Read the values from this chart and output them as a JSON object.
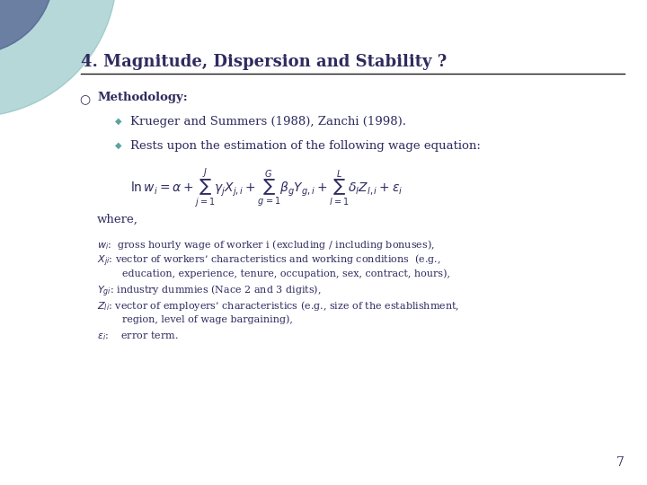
{
  "title": "4. Magnitude, Dispersion and Stability ?",
  "title_color": "#2E2B5F",
  "title_fontsize": 13,
  "bg_color": "#FFFFFF",
  "line_color": "#1a1a1a",
  "bullet_diamond_color": "#5BA3A0",
  "open_circle_color": "#2E2B5F",
  "body_color": "#2E2B5F",
  "body_fontsize": 9.5,
  "eq_fontsize": 9,
  "small_fontsize": 8,
  "page_number": "7",
  "teal_color": "#7BB8B8",
  "blue_circle_color": "#4A5A8A",
  "methodology_text": "Methodology:",
  "sub_bullet1": "Krueger and Summers (1988), Zanchi (1998).",
  "sub_bullet2": "Rests upon the estimation of the following wage equation:",
  "where_text": "where,",
  "desc1_var": "$w_i$",
  "desc1_text": ":  gross hourly wage of worker i (excluding / including bonuses),",
  "desc2_var": "$X_{ji}$",
  "desc2_text": ": vector of workers’ characteristics and working conditions  (e.g.,",
  "desc2_cont": "education, experience, tenure, occupation, sex, contract, hours),",
  "desc3_var": "$Y_{gi}$",
  "desc3_text": ": industry dummies (Nace 2 and 3 digits),",
  "desc4_var": "$Z_{li}$",
  "desc4_text": ": vector of employers’ characteristics (e.g., size of the establishment,",
  "desc4_cont": "region, level of wage bargaining),",
  "desc5_var": "$\\varepsilon_i$",
  "desc5_text": ":    error term."
}
